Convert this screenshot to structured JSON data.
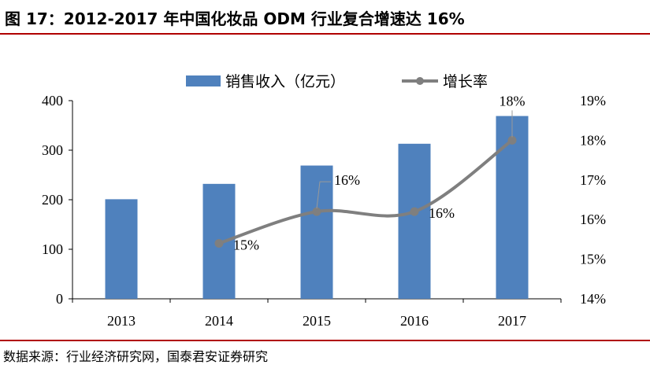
{
  "header": {
    "title": "图 17：2012-2017 年中国化妆品 ODM 行业复合增速达 16%"
  },
  "source": "数据来源：行业经济研究网，国泰君安证券研究",
  "colors": {
    "bar": "#4f81bd",
    "line": "#7f7f7f",
    "rule": "#b00000"
  },
  "chart_data": {
    "type": "bar",
    "categories": [
      "2013",
      "2014",
      "2015",
      "2016",
      "2017"
    ],
    "series": [
      {
        "name": "销售收入（亿元）",
        "type": "bar",
        "axis": "left",
        "values": [
          201,
          232,
          269,
          313,
          369
        ]
      },
      {
        "name": "增长率",
        "type": "line",
        "axis": "right",
        "values": [
          null,
          15.4,
          16.2,
          16.2,
          18.0
        ],
        "data_labels": [
          "",
          "15%",
          "16%",
          "16%",
          "18%"
        ]
      }
    ],
    "y_left": {
      "ylim": [
        0,
        400
      ],
      "ticks": [
        "0",
        "100",
        "200",
        "300",
        "400"
      ]
    },
    "y_right": {
      "ylim": [
        14,
        19
      ],
      "ticks": [
        "14%",
        "15%",
        "16%",
        "17%",
        "18%",
        "19%"
      ]
    },
    "legend_position": "top-center",
    "grid": false
  }
}
